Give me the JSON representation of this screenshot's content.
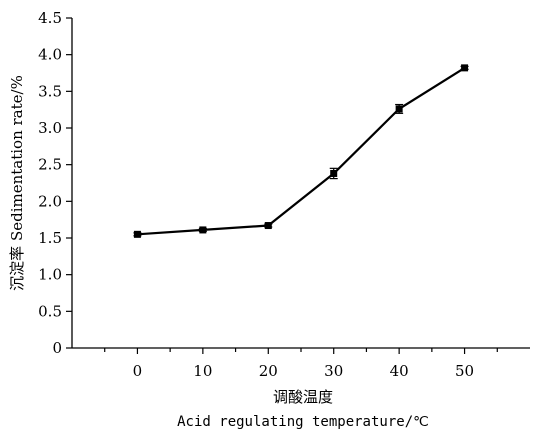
{
  "chart_data": {
    "type": "line",
    "x": [
      0,
      10,
      20,
      30,
      40,
      50
    ],
    "series": [
      {
        "values": [
          1.55,
          1.61,
          1.67,
          2.38,
          3.26,
          3.82
        ],
        "errors": [
          0.02,
          0.02,
          0.02,
          0.07,
          0.06,
          0.02
        ]
      }
    ],
    "xlim": [
      -10,
      60
    ],
    "ylim": [
      0,
      4.5
    ],
    "xticks": [
      "0",
      "10",
      "20",
      "30",
      "40",
      "50"
    ],
    "yticks": [
      "0",
      "0.5",
      "1.0",
      "1.5",
      "2.0",
      "2.5",
      "3.0",
      "3.5",
      "4.0",
      "4.5"
    ],
    "xlabel_cn": "调酸温度",
    "xlabel_en": "Acid regulating temperature/℃",
    "ylabel": "沉淀率 Sedimentation rate/%",
    "grid": false,
    "legend": "none"
  }
}
